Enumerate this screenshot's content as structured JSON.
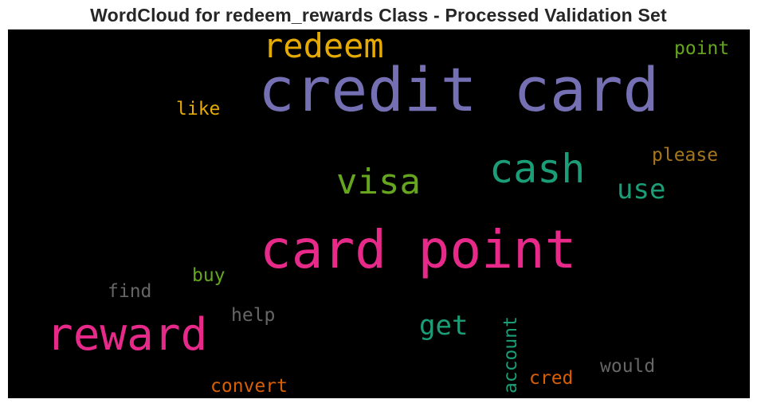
{
  "chart_data": {
    "type": "wordcloud",
    "title": "WordCloud for redeem_rewards Class - Processed Validation Set",
    "background": "#000000",
    "words": [
      {
        "text": "credit card",
        "color": "#7570b3",
        "orientation": "horizontal"
      },
      {
        "text": "card point",
        "color": "#e7298a",
        "orientation": "horizontal"
      },
      {
        "text": "reward",
        "color": "#e7298a",
        "orientation": "horizontal"
      },
      {
        "text": "cash",
        "color": "#1b9e77",
        "orientation": "horizontal"
      },
      {
        "text": "visa",
        "color": "#66a61e",
        "orientation": "horizontal"
      },
      {
        "text": "redeem",
        "color": "#e6ab02",
        "orientation": "horizontal"
      },
      {
        "text": "use",
        "color": "#1b9e77",
        "orientation": "horizontal"
      },
      {
        "text": "get",
        "color": "#1b9e77",
        "orientation": "horizontal"
      },
      {
        "text": "point",
        "color": "#66a61e",
        "orientation": "horizontal"
      },
      {
        "text": "please",
        "color": "#a6761d",
        "orientation": "horizontal"
      },
      {
        "text": "like",
        "color": "#e6ab02",
        "orientation": "horizontal"
      },
      {
        "text": "buy",
        "color": "#66a61e",
        "orientation": "horizontal"
      },
      {
        "text": "find",
        "color": "#666666",
        "orientation": "horizontal"
      },
      {
        "text": "help",
        "color": "#666666",
        "orientation": "horizontal"
      },
      {
        "text": "would",
        "color": "#666666",
        "orientation": "horizontal"
      },
      {
        "text": "account",
        "color": "#1b9e77",
        "orientation": "vertical"
      },
      {
        "text": "cred",
        "color": "#d95f02",
        "orientation": "horizontal"
      },
      {
        "text": "convert",
        "color": "#d95f02",
        "orientation": "horizontal"
      }
    ]
  }
}
